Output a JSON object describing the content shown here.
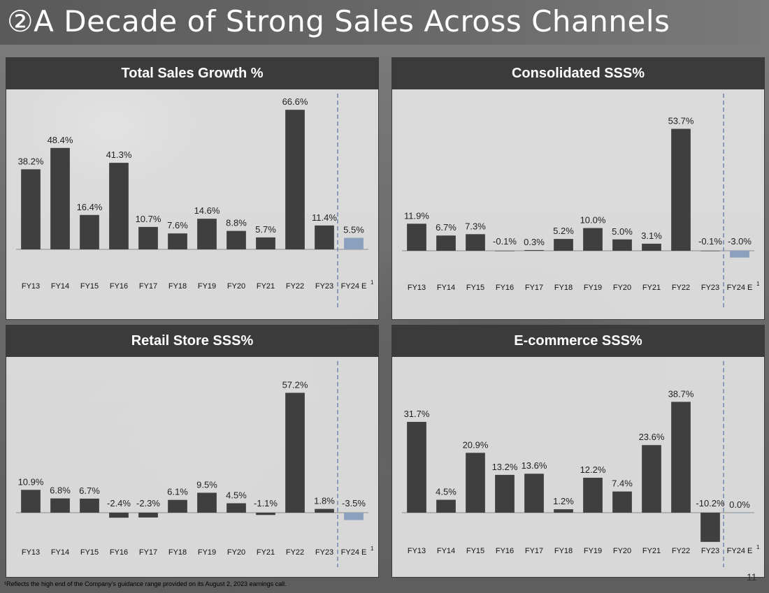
{
  "title": "②A Decade of Strong Sales Across Channels",
  "footnote": "¹Reflects the high end of the Company’s guidance range provided on its August 2, 2023 earnings call.",
  "page_number": "11",
  "colors": {
    "bar": "#3f3f3f",
    "estimate_bar": "#8aa0bd",
    "axis": "#8c8c8c",
    "divider": "#8a9bb5",
    "header_bg": "#3b3b3b"
  },
  "chart_data": [
    {
      "id": "total-sales-growth",
      "type": "bar",
      "title": "Total Sales Growth %",
      "categories": [
        "FY13",
        "FY14",
        "FY15",
        "FY16",
        "FY17",
        "FY18",
        "FY19",
        "FY20",
        "FY21",
        "FY22",
        "FY23",
        "FY24 E"
      ],
      "values": [
        38.2,
        48.4,
        16.4,
        41.3,
        10.7,
        7.6,
        14.6,
        8.8,
        5.7,
        66.6,
        11.4,
        5.5
      ],
      "value_labels": [
        "38.2%",
        "48.4%",
        "16.4%",
        "41.3%",
        "10.7%",
        "7.6%",
        "14.6%",
        "8.8%",
        "5.7%",
        "66.6%",
        "11.4%",
        "5.5%"
      ],
      "estimate_index": 11,
      "footnote_marker": "1",
      "grid": false,
      "legend": "none"
    },
    {
      "id": "consolidated-sss",
      "type": "bar",
      "title": "Consolidated SSS%",
      "categories": [
        "FY13",
        "FY14",
        "FY15",
        "FY16",
        "FY17",
        "FY18",
        "FY19",
        "FY20",
        "FY21",
        "FY22",
        "FY23",
        "FY24 E"
      ],
      "values": [
        11.9,
        6.7,
        7.3,
        -0.1,
        0.3,
        5.2,
        10.0,
        5.0,
        3.1,
        53.7,
        -0.1,
        -3.0
      ],
      "value_labels": [
        "11.9%",
        "6.7%",
        "7.3%",
        "-0.1%",
        "0.3%",
        "5.2%",
        "10.0%",
        "5.0%",
        "3.1%",
        "53.7%",
        "-0.1%",
        "-3.0%"
      ],
      "estimate_index": 11,
      "footnote_marker": "1",
      "grid": false,
      "legend": "none"
    },
    {
      "id": "retail-store-sss",
      "type": "bar",
      "title": "Retail Store SSS%",
      "categories": [
        "FY13",
        "FY14",
        "FY15",
        "FY16",
        "FY17",
        "FY18",
        "FY19",
        "FY20",
        "FY21",
        "FY22",
        "FY23",
        "FY24 E"
      ],
      "values": [
        10.9,
        6.8,
        6.7,
        -2.4,
        -2.3,
        6.1,
        9.5,
        4.5,
        -1.1,
        57.2,
        1.8,
        -3.5
      ],
      "value_labels": [
        "10.9%",
        "6.8%",
        "6.7%",
        "-2.4%",
        "-2.3%",
        "6.1%",
        "9.5%",
        "4.5%",
        "-1.1%",
        "57.2%",
        "1.8%",
        "-3.5%"
      ],
      "estimate_index": 11,
      "footnote_marker": "1",
      "grid": false,
      "legend": "none"
    },
    {
      "id": "ecommerce-sss",
      "type": "bar",
      "title": "E-commerce SSS%",
      "categories": [
        "FY13",
        "FY14",
        "FY15",
        "FY16",
        "FY17",
        "FY18",
        "FY19",
        "FY20",
        "FY21",
        "FY22",
        "FY23",
        "FY24 E"
      ],
      "values": [
        31.7,
        4.5,
        20.9,
        13.2,
        13.6,
        1.2,
        12.2,
        7.4,
        23.6,
        38.7,
        -10.2,
        0.0
      ],
      "value_labels": [
        "31.7%",
        "4.5%",
        "20.9%",
        "13.2%",
        "13.6%",
        "1.2%",
        "12.2%",
        "7.4%",
        "23.6%",
        "38.7%",
        "-10.2%",
        "0.0%"
      ],
      "estimate_index": 11,
      "footnote_marker": "1",
      "grid": false,
      "legend": "none"
    }
  ]
}
